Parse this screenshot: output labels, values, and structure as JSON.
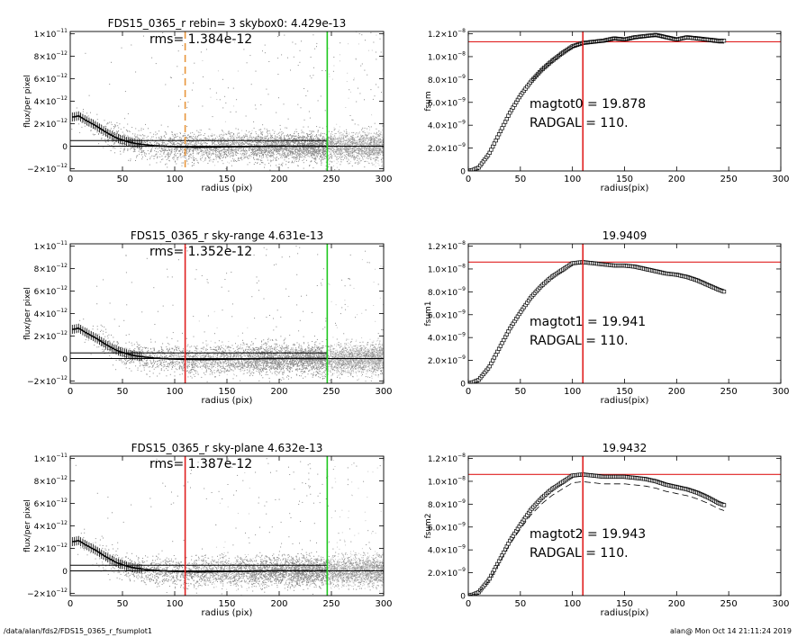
{
  "footer": {
    "left": "/data/alan/fds2/FDS15_0365_r_fsumplot1",
    "right": "alan@  Mon Oct 14 21:11:24 2019"
  },
  "colors": {
    "scatter": "#8c8c8c",
    "scatter_light": "#c8c8c8",
    "profile": "#000000",
    "orange": "#e8963c",
    "red": "#e02020",
    "green": "#1ec81e"
  },
  "chart_data": [
    {
      "id": "left1",
      "type": "scatter",
      "title": "FDS15_0365_r rebin= 3    skybox0:  4.429e-13",
      "annotations": [
        "rms= 1.384e-12"
      ],
      "xlabel": "radius (pix)",
      "ylabel": "flux/per pixel",
      "xlim": [
        0,
        300
      ],
      "ylim": [
        -2.2e-12,
        1.02e-11
      ],
      "xticks": [
        "0",
        "50",
        "100",
        "150",
        "200",
        "250",
        "300"
      ],
      "yticks": [
        {
          "v": -2e-12,
          "m": "−2×10",
          "e": "−12"
        },
        {
          "v": 0,
          "m": "0",
          "e": ""
        },
        {
          "v": 2e-12,
          "m": "2×10",
          "e": "−12"
        },
        {
          "v": 4e-12,
          "m": "4×10",
          "e": "−12"
        },
        {
          "v": 6e-12,
          "m": "6×10",
          "e": "−12"
        },
        {
          "v": 8e-12,
          "m": "8×10",
          "e": "−12"
        },
        {
          "v": 1e-11,
          "m": "1×10",
          "e": "−11"
        }
      ],
      "vlines": [
        {
          "x": 110,
          "color": "orange",
          "dash": true
        },
        {
          "x": 246,
          "color": "green",
          "dash": false
        }
      ],
      "hlines": [
        {
          "y": 5e-13,
          "xmax": 246
        },
        {
          "y": 0,
          "xmax": 300
        }
      ],
      "profile_x": [
        3,
        8,
        15,
        25,
        35,
        45,
        55,
        65,
        80,
        100,
        125,
        150,
        200,
        246
      ],
      "profile_y": [
        2.6e-12,
        2.7e-12,
        2.3e-12,
        1.8e-12,
        1.2e-12,
        7e-13,
        4e-13,
        2e-13,
        5e-14,
        -5e-14,
        -1e-13,
        -5e-14,
        0,
        0
      ]
    },
    {
      "id": "right1",
      "type": "line",
      "title": "",
      "annotations": [
        "magtot0 =  19.878",
        "RADGAL =    110."
      ],
      "xlabel": "radius(pix)",
      "ylabel": "fsum",
      "xlim": [
        0,
        300
      ],
      "ylim": [
        0,
        1.22e-08
      ],
      "xticks": [
        "0",
        "50",
        "100",
        "150",
        "200",
        "250",
        "300"
      ],
      "yticks": [
        {
          "v": 0,
          "m": "0",
          "e": ""
        },
        {
          "v": 2e-09,
          "m": "2.0×10",
          "e": "−9"
        },
        {
          "v": 4e-09,
          "m": "4.0×10",
          "e": "−9"
        },
        {
          "v": 6e-09,
          "m": "6.0×10",
          "e": "−9"
        },
        {
          "v": 8e-09,
          "m": "8.0×10",
          "e": "−9"
        },
        {
          "v": 1e-08,
          "m": "1.0×10",
          "e": "−8"
        },
        {
          "v": 1.2e-08,
          "m": "1.2×10",
          "e": "−8"
        }
      ],
      "vlines": [
        {
          "x": 110,
          "color": "red",
          "dash": false
        }
      ],
      "hline_red": 1.13e-08,
      "curve_x": [
        0,
        5,
        10,
        20,
        30,
        40,
        50,
        60,
        70,
        80,
        90,
        100,
        110,
        120,
        130,
        140,
        150,
        160,
        170,
        180,
        190,
        200,
        210,
        220,
        230,
        240,
        246
      ],
      "curve_y": [
        0,
        1e-10,
        3e-10,
        1.5e-09,
        3.3e-09,
        5.1e-09,
        6.6e-09,
        7.8e-09,
        8.8e-09,
        9.6e-09,
        1.03e-08,
        1.09e-08,
        1.12e-08,
        1.13e-08,
        1.14e-08,
        1.16e-08,
        1.15e-08,
        1.17e-08,
        1.18e-08,
        1.19e-08,
        1.17e-08,
        1.15e-08,
        1.17e-08,
        1.16e-08,
        1.15e-08,
        1.14e-08,
        1.14e-08
      ],
      "upper_offset": 6e-11,
      "envelope": true,
      "lower_dashed": false
    },
    {
      "id": "left2",
      "type": "scatter",
      "title": "FDS15_0365_r sky-range  4.631e-13",
      "annotations": [
        "rms= 1.352e-12"
      ],
      "xlabel": "radius (pix)",
      "ylabel": "flux/per pixel",
      "xlim": [
        0,
        300
      ],
      "ylim": [
        -2.2e-12,
        1.02e-11
      ],
      "xticks": [
        "0",
        "50",
        "100",
        "150",
        "200",
        "250",
        "300"
      ],
      "yticks": [
        {
          "v": -2e-12,
          "m": "−2×10",
          "e": "−12"
        },
        {
          "v": 0,
          "m": "0",
          "e": ""
        },
        {
          "v": 2e-12,
          "m": "2×10",
          "e": "−12"
        },
        {
          "v": 4e-12,
          "m": "4×10",
          "e": "−12"
        },
        {
          "v": 6e-12,
          "m": "6×10",
          "e": "−12"
        },
        {
          "v": 8e-12,
          "m": "8×10",
          "e": "−12"
        },
        {
          "v": 1e-11,
          "m": "1×10",
          "e": "−11"
        }
      ],
      "vlines": [
        {
          "x": 110,
          "color": "red",
          "dash": false
        },
        {
          "x": 246,
          "color": "green",
          "dash": false
        }
      ],
      "hlines": [
        {
          "y": 5e-13,
          "xmax": 246
        },
        {
          "y": 0,
          "xmax": 300
        }
      ],
      "profile_x": [
        3,
        8,
        15,
        25,
        35,
        45,
        55,
        65,
        80,
        100,
        125,
        150,
        200,
        246
      ],
      "profile_y": [
        2.6e-12,
        2.7e-12,
        2.3e-12,
        1.8e-12,
        1.2e-12,
        7e-13,
        4e-13,
        2e-13,
        5e-14,
        -5e-14,
        -1e-13,
        -5e-14,
        0,
        0
      ]
    },
    {
      "id": "right2",
      "type": "line",
      "title": "19.9409",
      "annotations": [
        "magtot1 =  19.941",
        "RADGAL =    110."
      ],
      "xlabel": "radius(pix)",
      "ylabel": "fsum1",
      "xlim": [
        0,
        300
      ],
      "ylim": [
        0,
        1.22e-08
      ],
      "xticks": [
        "0",
        "50",
        "100",
        "150",
        "200",
        "250",
        "300"
      ],
      "yticks": [
        {
          "v": 0,
          "m": "0",
          "e": ""
        },
        {
          "v": 2e-09,
          "m": "2.0×10",
          "e": "−9"
        },
        {
          "v": 4e-09,
          "m": "4.0×10",
          "e": "−9"
        },
        {
          "v": 6e-09,
          "m": "6.0×10",
          "e": "−9"
        },
        {
          "v": 8e-09,
          "m": "8.0×10",
          "e": "−9"
        },
        {
          "v": 1e-08,
          "m": "1.0×10",
          "e": "−8"
        },
        {
          "v": 1.2e-08,
          "m": "1.2×10",
          "e": "−8"
        }
      ],
      "vlines": [
        {
          "x": 110,
          "color": "red",
          "dash": false
        }
      ],
      "hline_red": 1.06e-08,
      "curve_x": [
        0,
        5,
        10,
        20,
        30,
        40,
        50,
        60,
        70,
        80,
        90,
        100,
        110,
        120,
        130,
        140,
        150,
        160,
        170,
        180,
        190,
        200,
        210,
        220,
        230,
        240,
        246
      ],
      "curve_y": [
        0,
        1e-10,
        3e-10,
        1.4e-09,
        3.1e-09,
        4.8e-09,
        6.2e-09,
        7.5e-09,
        8.5e-09,
        9.3e-09,
        9.9e-09,
        1.05e-08,
        1.06e-08,
        1.05e-08,
        1.04e-08,
        1.03e-08,
        1.03e-08,
        1.02e-08,
        1e-08,
        9.8e-09,
        9.6e-09,
        9.5e-09,
        9.3e-09,
        9e-09,
        8.6e-09,
        8.2e-09,
        8e-09
      ],
      "upper_offset": 0,
      "envelope": false,
      "lower_dashed": false
    },
    {
      "id": "left3",
      "type": "scatter",
      "title": "FDS15_0365_r sky-plane  4.632e-13",
      "annotations": [
        "rms= 1.387e-12"
      ],
      "xlabel": "radius (pix)",
      "ylabel": "flux/per pixel",
      "xlim": [
        0,
        300
      ],
      "ylim": [
        -2.2e-12,
        1.02e-11
      ],
      "xticks": [
        "0",
        "50",
        "100",
        "150",
        "200",
        "250",
        "300"
      ],
      "yticks": [
        {
          "v": -2e-12,
          "m": "−2×10",
          "e": "−12"
        },
        {
          "v": 0,
          "m": "0",
          "e": ""
        },
        {
          "v": 2e-12,
          "m": "2×10",
          "e": "−12"
        },
        {
          "v": 4e-12,
          "m": "4×10",
          "e": "−12"
        },
        {
          "v": 6e-12,
          "m": "6×10",
          "e": "−12"
        },
        {
          "v": 8e-12,
          "m": "8×10",
          "e": "−12"
        },
        {
          "v": 1e-11,
          "m": "1×10",
          "e": "−11"
        }
      ],
      "vlines": [
        {
          "x": 110,
          "color": "red",
          "dash": false
        },
        {
          "x": 246,
          "color": "green",
          "dash": false
        }
      ],
      "hlines": [
        {
          "y": 5e-13,
          "xmax": 246
        },
        {
          "y": 0,
          "xmax": 300
        }
      ],
      "profile_x": [
        3,
        8,
        15,
        25,
        35,
        45,
        55,
        65,
        80,
        100,
        125,
        150,
        200,
        246
      ],
      "profile_y": [
        2.6e-12,
        2.7e-12,
        2.3e-12,
        1.8e-12,
        1.2e-12,
        7e-13,
        4e-13,
        2e-13,
        5e-14,
        -5e-14,
        -1e-13,
        -5e-14,
        0,
        0
      ]
    },
    {
      "id": "right3",
      "type": "line",
      "title": "19.9432",
      "annotations": [
        "magtot2 =  19.943",
        "RADGAL =    110."
      ],
      "xlabel": "radius(pix)",
      "ylabel": "fsum2",
      "xlim": [
        0,
        300
      ],
      "ylim": [
        0,
        1.22e-08
      ],
      "xticks": [
        "0",
        "50",
        "100",
        "150",
        "200",
        "250",
        "300"
      ],
      "yticks": [
        {
          "v": 0,
          "m": "0",
          "e": ""
        },
        {
          "v": 2e-09,
          "m": "2.0×10",
          "e": "−9"
        },
        {
          "v": 4e-09,
          "m": "4.0×10",
          "e": "−9"
        },
        {
          "v": 6e-09,
          "m": "6.0×10",
          "e": "−9"
        },
        {
          "v": 8e-09,
          "m": "8.0×10",
          "e": "−9"
        },
        {
          "v": 1e-08,
          "m": "1.0×10",
          "e": "−8"
        },
        {
          "v": 1.2e-08,
          "m": "1.2×10",
          "e": "−8"
        }
      ],
      "vlines": [
        {
          "x": 110,
          "color": "red",
          "dash": false
        }
      ],
      "hline_red": 1.06e-08,
      "curve_x": [
        0,
        5,
        10,
        20,
        30,
        40,
        50,
        60,
        70,
        80,
        90,
        100,
        110,
        120,
        130,
        140,
        150,
        160,
        170,
        180,
        190,
        200,
        210,
        220,
        230,
        240,
        246
      ],
      "curve_y": [
        0,
        1e-10,
        3e-10,
        1.4e-09,
        3.1e-09,
        4.8e-09,
        6.2e-09,
        7.5e-09,
        8.5e-09,
        9.3e-09,
        9.9e-09,
        1.05e-08,
        1.06e-08,
        1.05e-08,
        1.04e-08,
        1.04e-08,
        1.04e-08,
        1.03e-08,
        1.02e-08,
        1e-08,
        9.7e-09,
        9.5e-09,
        9.3e-09,
        9e-09,
        8.6e-09,
        8.1e-09,
        7.9e-09
      ],
      "upper_offset": 0,
      "envelope": false,
      "lower_dashed": true,
      "lower_factor": 0.94
    }
  ]
}
